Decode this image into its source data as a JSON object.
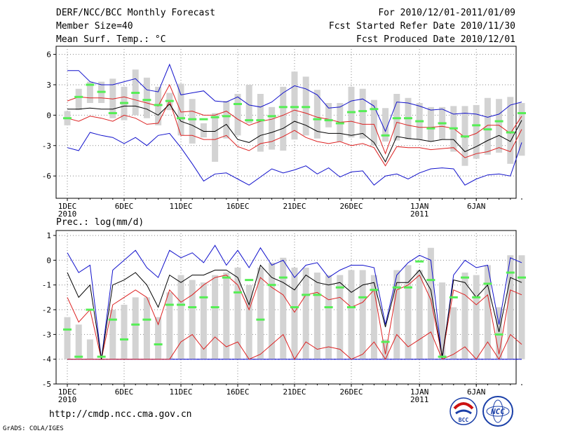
{
  "header": {
    "left_lines": [
      "DERF/NCC/BCC Monthly Forecast",
      "Member Size=40",
      "Mean Surf. Temp.: °C"
    ],
    "right_lines": [
      "For 2010/12/01-2011/01/09",
      "Fcst Started Refer Date 2010/11/30",
      "Fcst Produced Date 2010/12/01"
    ]
  },
  "footer": {
    "url": "http://cmdp.ncc.cma.gov.cn",
    "credit": "GrADS: COLA/IGES",
    "logo_bcc": "BCC",
    "logo_ncc": "NCC"
  },
  "colors": {
    "box": "#d3d3d3",
    "mean": "#55ee55",
    "median": "#000000",
    "inner": "#dd2222",
    "outer": "#1111cc",
    "baseline": "#1111cc"
  },
  "chart_data": [
    {
      "type": "box",
      "title": "Mean Surf. Temp.: °C",
      "ylim": [
        -8.2,
        6.8
      ],
      "yticks": [
        -6,
        -3,
        0,
        3,
        6
      ],
      "x_tick_labels": [
        {
          "index": 0,
          "label": "1DEC",
          "sub": "2010"
        },
        {
          "index": 5,
          "label": "6DEC"
        },
        {
          "index": 10,
          "label": "11DEC"
        },
        {
          "index": 15,
          "label": "16DEC"
        },
        {
          "index": 20,
          "label": "21DEC"
        },
        {
          "index": 25,
          "label": "26DEC"
        },
        {
          "index": 31,
          "label": "1JAN",
          "sub": "2011"
        },
        {
          "index": 36,
          "label": "6JAN"
        }
      ],
      "series": {
        "box_low": [
          -1,
          0.5,
          1.2,
          1.2,
          -0.3,
          -0.5,
          0,
          -0.3,
          -1,
          0.5,
          -2.0,
          -2.8,
          -2.2,
          -4.6,
          -2.3,
          -2.0,
          -0.8,
          -3.6,
          -3.4,
          -3.5,
          -2.4,
          -2.0,
          -2.3,
          -1.2,
          -2.6,
          -2.2,
          -2.3,
          -3.0,
          -2.6,
          -2.5,
          -2.4,
          -2.4,
          -2.6,
          -2.4,
          -3.6,
          -5.0,
          -4.3,
          -3.9,
          -3.7,
          -4.8,
          -4.0
        ],
        "box_high": [
          0.4,
          2.6,
          3.3,
          3.3,
          3.6,
          2.8,
          4.5,
          3.7,
          2.8,
          2.2,
          3.1,
          1.6,
          -0.8,
          0.2,
          1.4,
          2.1,
          3.0,
          2.1,
          0.8,
          2.8,
          4.3,
          3.8,
          2.5,
          1.2,
          1.2,
          2.8,
          2.6,
          1.5,
          0.7,
          2.1,
          1.7,
          1.2,
          0.8,
          0.8,
          0.9,
          0.9,
          1.0,
          1.7,
          1.6,
          1.8,
          1.2
        ],
        "mean": [
          -0.3,
          1.8,
          3.0,
          2.3,
          0.2,
          1.2,
          2.2,
          1.5,
          1.0,
          1.4,
          -0.3,
          -0.4,
          -0.4,
          -0.2,
          -0.1,
          1.1,
          -0.5,
          -0.5,
          -0.1,
          0.8,
          0.8,
          0.8,
          -0.4,
          -0.5,
          -0.8,
          0.3,
          0.4,
          0.6,
          -2.0,
          -0.3,
          -0.3,
          -0.6,
          -1.3,
          -0.8,
          -1.3,
          -2.1,
          -1.0,
          -1.4,
          -0.6,
          -1.7,
          0.2
        ],
        "median": [
          0.6,
          0.6,
          0.7,
          0.6,
          0.6,
          0.9,
          0.9,
          0.6,
          0.0,
          1.1,
          -0.6,
          -1.0,
          -1.6,
          -1.6,
          -0.9,
          -2.4,
          -2.7,
          -2.0,
          -1.7,
          -1.3,
          -0.6,
          -1.0,
          -1.6,
          -1.8,
          -1.8,
          -2.0,
          -1.8,
          -2.7,
          -4.6,
          -2.1,
          -2.3,
          -2.4,
          -2.6,
          -2.4,
          -2.4,
          -3.6,
          -3.1,
          -2.5,
          -2.0,
          -2.6,
          -0.5
        ],
        "inner_high": [
          1.4,
          1.8,
          1.7,
          1.7,
          1.6,
          1.8,
          1.5,
          1.2,
          0.9,
          3.0,
          0.3,
          0.4,
          0.0,
          0.0,
          0.4,
          -0.4,
          -1.0,
          -0.6,
          -0.4,
          0.0,
          0.5,
          0.2,
          -0.2,
          -0.4,
          -0.7,
          -0.6,
          -0.9,
          -0.9,
          -3.8,
          -0.7,
          -1.0,
          -1.2,
          -1.2,
          -1.1,
          -1.3,
          -2.2,
          -1.8,
          -1.0,
          -1.0,
          -1.8,
          -0.1
        ],
        "inner_low": [
          -0.3,
          -0.6,
          -0.1,
          -0.3,
          -0.6,
          0.0,
          -0.3,
          -0.9,
          -0.8,
          1.4,
          -2.0,
          -2.0,
          -2.4,
          -2.4,
          -2.0,
          -3.1,
          -3.5,
          -2.8,
          -2.6,
          -2.1,
          -1.5,
          -2.2,
          -2.6,
          -2.8,
          -2.6,
          -3.0,
          -2.8,
          -3.2,
          -5.0,
          -3.1,
          -3.2,
          -3.2,
          -3.4,
          -3.3,
          -3.2,
          -4.2,
          -3.8,
          -3.6,
          -3.2,
          -3.6,
          -1.4
        ],
        "outer_high": [
          4.4,
          4.4,
          3.3,
          3.0,
          3.0,
          3.3,
          3.6,
          2.5,
          2.3,
          5.0,
          2.0,
          2.2,
          2.4,
          1.4,
          1.3,
          1.8,
          1.0,
          0.8,
          1.3,
          2.2,
          2.9,
          2.6,
          2.0,
          0.7,
          0.8,
          1.4,
          1.6,
          0.9,
          -1.6,
          1.3,
          1.2,
          0.9,
          0.5,
          0.6,
          0.1,
          0.2,
          0.1,
          -0.2,
          0.1,
          1.0,
          1.3
        ],
        "outer_low": [
          -3.2,
          -3.5,
          -1.7,
          -2.0,
          -2.2,
          -2.8,
          -2.2,
          -3.0,
          -2.0,
          -1.8,
          -3.2,
          -4.8,
          -6.5,
          -5.8,
          -5.7,
          -6.3,
          -6.9,
          -6.1,
          -5.3,
          -5.7,
          -5.4,
          -5.0,
          -5.8,
          -5.2,
          -6.1,
          -5.6,
          -5.5,
          -6.9,
          -6.0,
          -5.8,
          -6.3,
          -5.7,
          -5.3,
          -5.2,
          -5.3,
          -6.9,
          -6.3,
          -5.9,
          -5.8,
          -6.0,
          -2.7
        ]
      }
    },
    {
      "type": "box",
      "title": "Prec.: log(mm/d)",
      "ylim": [
        -5,
        1.2
      ],
      "yticks": [
        -5,
        -4,
        -3,
        -2,
        -1,
        0,
        1
      ],
      "x_tick_labels": [
        {
          "index": 0,
          "label": "1DEC",
          "sub": "2010"
        },
        {
          "index": 5,
          "label": "6DEC"
        },
        {
          "index": 10,
          "label": "11DEC"
        },
        {
          "index": 15,
          "label": "16DEC"
        },
        {
          "index": 20,
          "label": "21DEC"
        },
        {
          "index": 25,
          "label": "26DEC"
        },
        {
          "index": 31,
          "label": "1JAN",
          "sub": "2011"
        },
        {
          "index": 36,
          "label": "6JAN"
        }
      ],
      "series": {
        "box_low": [
          -4,
          -4,
          -4,
          -4,
          -4,
          -4,
          -4,
          -4,
          -4,
          -4,
          -4,
          -4,
          -4,
          -4,
          -4,
          -4,
          -4,
          -4,
          -4,
          -4,
          -4,
          -4,
          -4,
          -4,
          -4,
          -4,
          -4,
          -4,
          -4,
          -4,
          -4,
          -4,
          -4,
          -4,
          -4,
          -4,
          -4,
          -4,
          -4,
          -4,
          -4
        ],
        "box_high": [
          -2.3,
          -2.6,
          -3.2,
          -4.0,
          -2.0,
          -1.8,
          -1.5,
          -1.5,
          -2.3,
          -1.3,
          -0.6,
          -0.8,
          -0.9,
          -0.6,
          -0.5,
          -0.3,
          -1.0,
          -0.3,
          -0.1,
          0.1,
          -0.3,
          -0.3,
          -0.5,
          -0.6,
          -0.6,
          -0.4,
          -0.4,
          -0.6,
          -3.2,
          -0.4,
          -0.2,
          -0.4,
          0.5,
          -0.9,
          -1.9,
          -0.5,
          -0.6,
          -0.2,
          -1.9,
          0.2,
          0.2
        ],
        "mean": [
          -2.8,
          -3.9,
          -2.0,
          -3.9,
          -2.4,
          -3.2,
          -2.6,
          -2.4,
          -3.4,
          -1.8,
          -1.8,
          -1.9,
          -1.5,
          -1.9,
          -0.7,
          -1.3,
          -0.8,
          -2.4,
          -1.0,
          -0.7,
          -1.9,
          -1.4,
          -1.4,
          -1.9,
          -1.1,
          -1.9,
          -1.5,
          -1.2,
          -3.3,
          -1.1,
          -1.1,
          -0.05,
          -0.8,
          -3.9,
          -1.5,
          -0.7,
          -1.5,
          -0.95,
          -3.0,
          -0.5,
          -0.7
        ],
        "median": [
          -0.5,
          -1.5,
          -1.0,
          -4.0,
          -1.0,
          -0.8,
          -0.5,
          -1.0,
          -1.9,
          -0.6,
          -0.9,
          -0.6,
          -0.6,
          -0.4,
          -0.4,
          -0.7,
          -1.8,
          -0.2,
          -0.7,
          -0.9,
          -1.2,
          -0.6,
          -0.9,
          -1.0,
          -0.9,
          -1.3,
          -1.0,
          -0.9,
          -2.7,
          -0.9,
          -0.9,
          -0.4,
          -1.2,
          -3.9,
          -0.8,
          -0.9,
          -1.5,
          -1.0,
          -2.9,
          -0.7,
          -0.9
        ],
        "inner_high": [
          -1.5,
          -2.5,
          -2.0,
          -4.0,
          -1.8,
          -1.5,
          -1.2,
          -1.5,
          -2.6,
          -1.2,
          -1.7,
          -1.4,
          -1.0,
          -0.7,
          -0.6,
          -1.0,
          -2.0,
          -0.7,
          -1.1,
          -1.4,
          -2.1,
          -1.4,
          -1.3,
          -1.6,
          -1.5,
          -1.9,
          -1.7,
          -1.2,
          -3.8,
          -1.2,
          -1.0,
          -0.6,
          -1.6,
          -3.9,
          -1.2,
          -1.4,
          -1.8,
          -1.4,
          -3.8,
          -1.2,
          -1.4
        ],
        "inner_low": [
          -4,
          -4,
          -4,
          -4,
          -4,
          -4,
          -4,
          -4,
          -4,
          -4,
          -3.3,
          -3.0,
          -3.6,
          -3.1,
          -3.5,
          -3.3,
          -4.0,
          -3.8,
          -3.4,
          -3.0,
          -4.0,
          -3.3,
          -3.6,
          -3.5,
          -3.6,
          -4.0,
          -3.8,
          -3.3,
          -4.0,
          -3.0,
          -3.5,
          -3.2,
          -2.9,
          -4.0,
          -3.8,
          -3.5,
          -4.0,
          -3.3,
          -4.0,
          -3.0,
          -3.4
        ],
        "outer_high": [
          0.3,
          -0.5,
          -0.2,
          -4.0,
          -0.4,
          0.0,
          0.4,
          -0.3,
          -0.7,
          0.4,
          0.1,
          0.3,
          -0.1,
          0.6,
          -0.2,
          0.4,
          -0.3,
          0.5,
          -0.2,
          0.0,
          -0.7,
          -0.2,
          -0.1,
          -0.7,
          -0.4,
          -0.2,
          -0.2,
          -0.3,
          -2.6,
          -0.6,
          -0.1,
          0.2,
          0.0,
          -4.0,
          -0.6,
          0.0,
          -0.3,
          -0.2,
          -2.6,
          0.1,
          -0.1
        ],
        "outer_low": [
          -4,
          -4,
          -4,
          -4,
          -4,
          -4,
          -4,
          -4,
          -4,
          -4,
          -4,
          -4,
          -4,
          -4,
          -4,
          -4,
          -4,
          -4,
          -4,
          -4,
          -4,
          -4,
          -4,
          -4,
          -4,
          -4,
          -4,
          -4,
          -4,
          -4,
          -4,
          -4,
          -4,
          -4,
          -4,
          -4,
          -4,
          -4,
          -4,
          -4,
          -4
        ]
      }
    }
  ]
}
